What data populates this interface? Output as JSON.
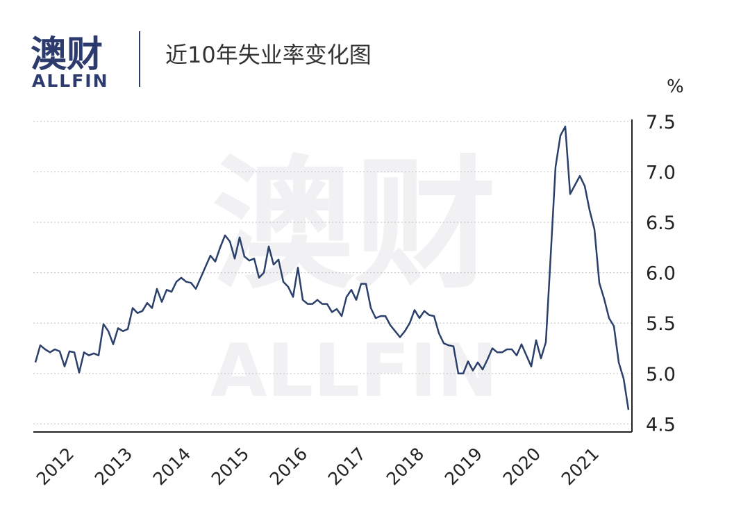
{
  "logo": {
    "text": "澳财",
    "subtext": "ALLFIN"
  },
  "chart_data": {
    "type": "line",
    "title": "近10年失业率变化图",
    "y_label": "%",
    "categories": [
      "2012",
      null,
      null,
      null,
      null,
      null,
      null,
      null,
      null,
      null,
      null,
      null,
      "2013",
      null,
      null,
      null,
      null,
      null,
      null,
      null,
      null,
      null,
      null,
      null,
      "2014",
      null,
      null,
      null,
      null,
      null,
      null,
      null,
      null,
      null,
      null,
      null,
      "2015",
      null,
      null,
      null,
      null,
      null,
      null,
      null,
      null,
      null,
      null,
      null,
      "2016",
      null,
      null,
      null,
      null,
      null,
      null,
      null,
      null,
      null,
      null,
      null,
      "2017",
      null,
      null,
      null,
      null,
      null,
      null,
      null,
      null,
      null,
      null,
      null,
      "2018",
      null,
      null,
      null,
      null,
      null,
      null,
      null,
      null,
      null,
      null,
      null,
      "2019",
      null,
      null,
      null,
      null,
      null,
      null,
      null,
      null,
      null,
      null,
      null,
      "2020",
      null,
      null,
      null,
      null,
      null,
      null,
      null,
      null,
      null,
      null,
      null,
      "2021",
      null,
      null,
      null,
      null,
      null,
      null,
      null,
      null,
      null,
      null,
      null,
      null,
      null,
      null
    ],
    "series": [
      {
        "color": "#2b3f6b",
        "values": [
          5.11,
          5.28,
          5.24,
          5.21,
          5.24,
          5.22,
          5.07,
          5.22,
          5.21,
          5.01,
          5.21,
          5.18,
          5.2,
          5.18,
          5.49,
          5.42,
          5.29,
          5.45,
          5.42,
          5.44,
          5.65,
          5.6,
          5.62,
          5.7,
          5.65,
          5.84,
          5.71,
          5.83,
          5.81,
          5.91,
          5.95,
          5.91,
          5.9,
          5.84,
          5.95,
          6.06,
          6.17,
          6.11,
          6.25,
          6.37,
          6.31,
          6.14,
          6.35,
          6.16,
          6.12,
          6.14,
          5.95,
          6.0,
          6.26,
          6.08,
          6.13,
          5.91,
          5.86,
          5.76,
          6.05,
          5.73,
          5.69,
          5.69,
          5.73,
          5.69,
          5.69,
          5.61,
          5.64,
          5.57,
          5.76,
          5.83,
          5.73,
          5.89,
          5.89,
          5.65,
          5.55,
          5.57,
          5.57,
          5.48,
          5.42,
          5.36,
          5.42,
          5.5,
          5.63,
          5.55,
          5.62,
          5.58,
          5.57,
          5.4,
          5.3,
          5.28,
          5.27,
          5.0,
          5.0,
          5.12,
          5.03,
          5.11,
          5.04,
          5.14,
          5.25,
          5.21,
          5.21,
          5.24,
          5.24,
          5.18,
          5.29,
          5.18,
          5.07,
          5.33,
          5.15,
          5.31,
          6.17,
          7.05,
          7.36,
          7.45,
          6.78,
          6.87,
          6.96,
          6.86,
          6.62,
          6.43,
          5.9,
          5.74,
          5.55,
          5.47,
          5.11,
          4.95,
          4.64
        ]
      }
    ],
    "ylim": [
      4.42,
      7.52
    ],
    "yticks": [
      4.5,
      {
        "value": 5,
        "label": "5.0"
      },
      5.5,
      {
        "value": 6,
        "label": "6.0"
      },
      6.5,
      {
        "value": 7,
        "label": "7.0"
      },
      7.5
    ],
    "grid": true
  }
}
